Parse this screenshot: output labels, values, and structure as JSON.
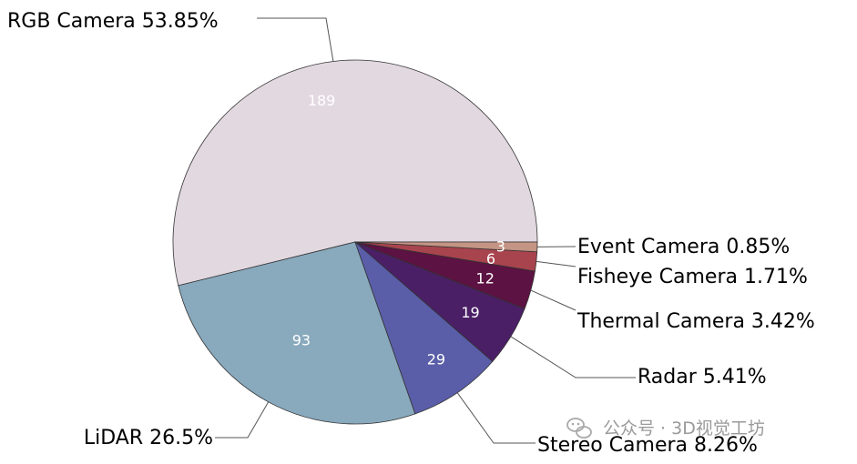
{
  "chart_data": {
    "type": "pie",
    "slices": [
      {
        "label": "RGB Camera",
        "percent": "53.85%",
        "value": 189,
        "color": "#e2d8e0"
      },
      {
        "label": "LiDAR",
        "percent": "26.5%",
        "value": 93,
        "color": "#89a9bd"
      },
      {
        "label": "Stereo Camera",
        "percent": "8.26%",
        "value": 29,
        "color": "#5a5ea8"
      },
      {
        "label": "Radar",
        "percent": "5.41%",
        "value": 19,
        "color": "#4a1f66"
      },
      {
        "label": "Thermal Camera",
        "percent": "3.42%",
        "value": 12,
        "color": "#5c1242"
      },
      {
        "label": "Fisheye Camera",
        "percent": "1.71%",
        "value": 6,
        "color": "#a8444e"
      },
      {
        "label": "Event Camera",
        "percent": "0.85%",
        "value": 3,
        "color": "#c49584"
      }
    ]
  },
  "watermark": {
    "text": "公众号 · 3D视觉工坊",
    "icon": "wechat-icon"
  }
}
